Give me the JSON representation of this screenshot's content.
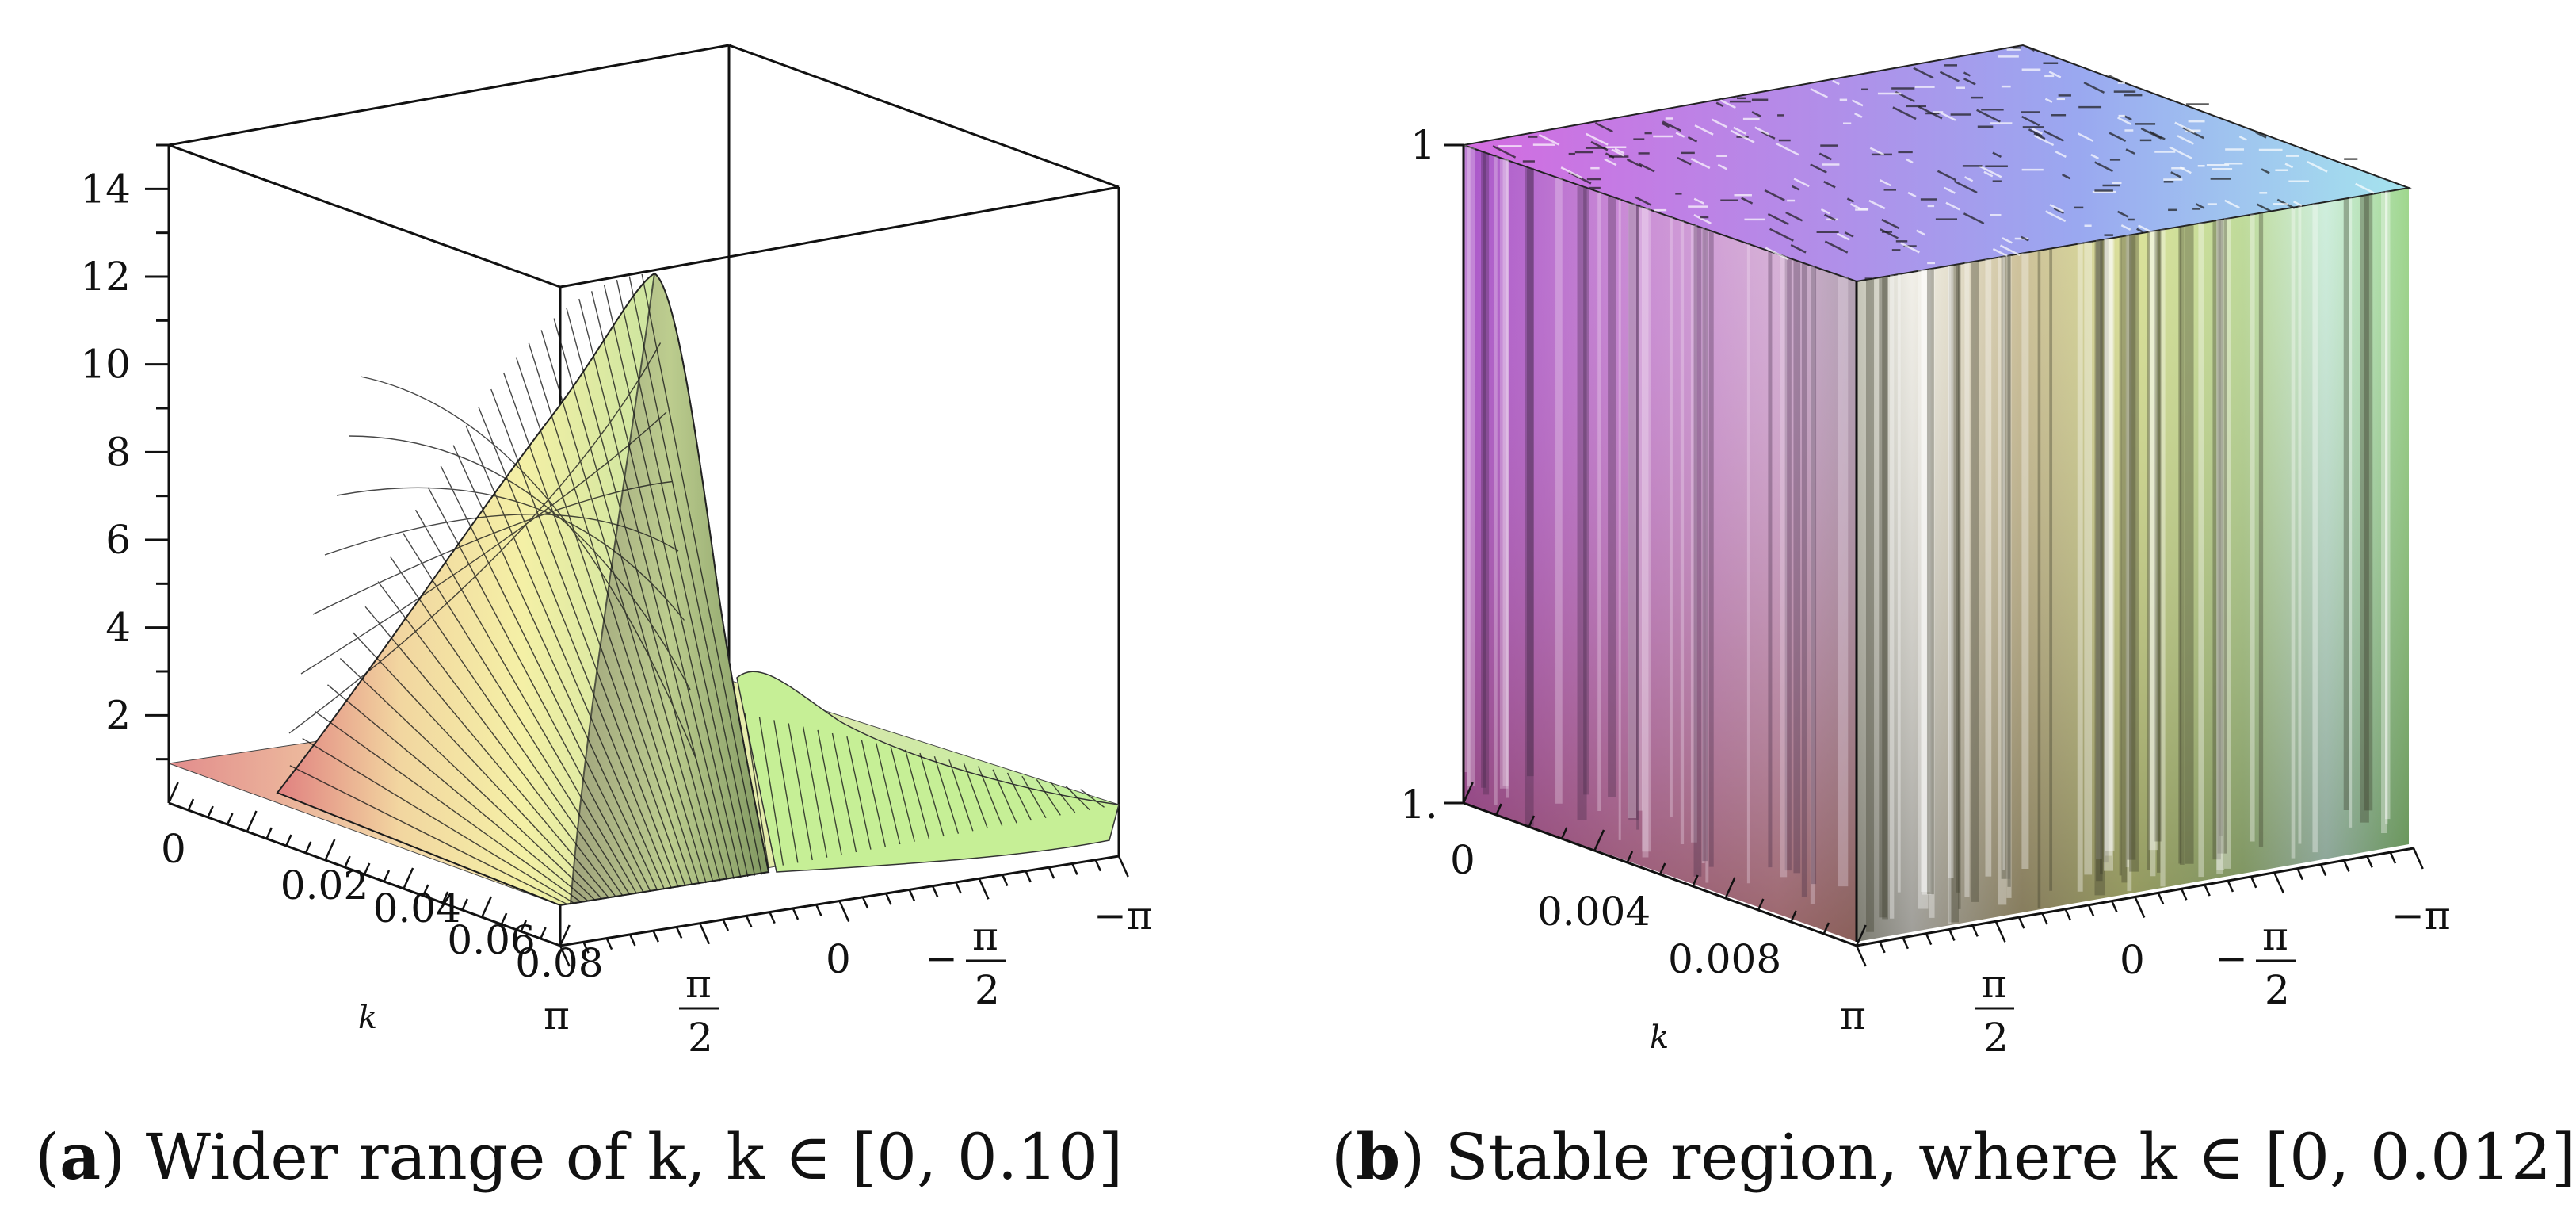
{
  "chart_data": [
    {
      "id": "a",
      "type": "surface3d",
      "caption": {
        "tag": "a",
        "text": "Wider range of k, k ∈ [0, 0.10]"
      },
      "z_ticks": [
        2,
        4,
        6,
        8,
        10,
        12,
        14
      ],
      "z_range": [
        0,
        15
      ],
      "k_ticks": [
        "0",
        "0.02",
        "0.04",
        "0.06",
        "0.08"
      ],
      "k_range": [
        0,
        0.1
      ],
      "k_label": "k",
      "theta_ticks": [
        "π",
        "π/2",
        "0",
        "−π/2",
        "−π"
      ],
      "theta_range": [
        -3.1416,
        3.1416
      ],
      "peak_value": 13.0,
      "peak_at": {
        "k": 0.1,
        "theta": 0.9
      },
      "baseline_value": 1.0
    },
    {
      "id": "b",
      "type": "surface3d",
      "caption": {
        "tag": "b",
        "text": "Stable region, where k ∈ [0, 0.012]"
      },
      "z_ticks": [
        "1.",
        "1"
      ],
      "k_ticks": [
        "0",
        "0.004",
        "0.008"
      ],
      "k_range": [
        0,
        0.012
      ],
      "k_label": "k",
      "theta_ticks": [
        "π",
        "π/2",
        "0",
        "−π/2",
        "−π"
      ],
      "theta_range": [
        -3.1416,
        3.1416
      ]
    }
  ],
  "colors": {
    "axis": "#111111",
    "mesh": "#1a1a1a"
  }
}
